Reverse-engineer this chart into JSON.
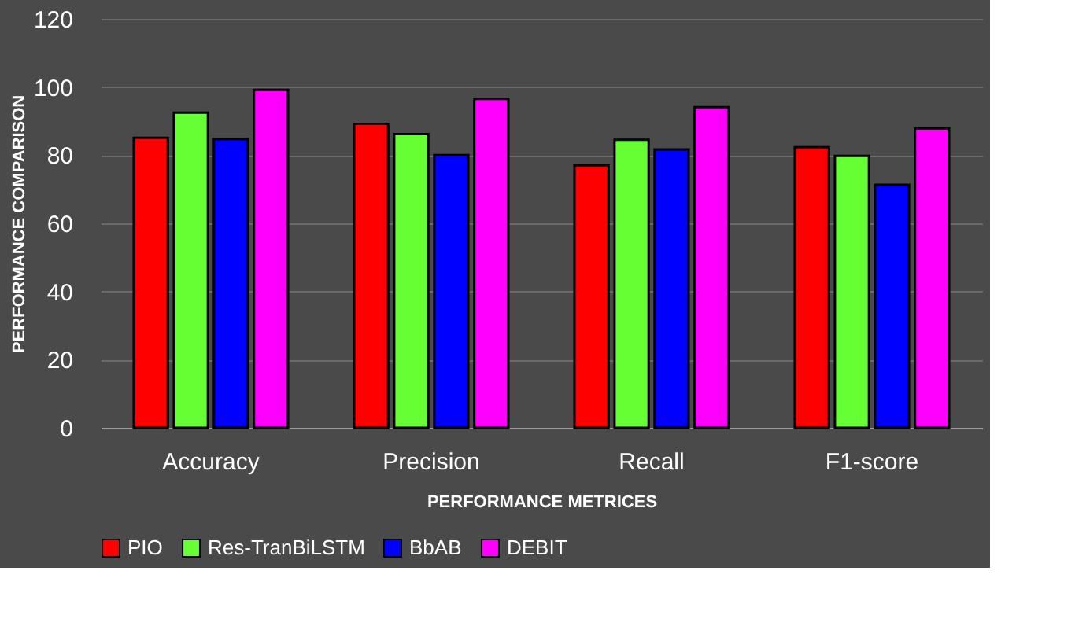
{
  "chart_data": {
    "type": "bar",
    "xlabel": "PERFORMANCE METRICES",
    "ylabel": "PERFORMANCE COMPARISON",
    "categories": [
      "Accuracy",
      "Precision",
      "Recall",
      "F1-score"
    ],
    "series": [
      {
        "name": "PIO",
        "color": "#ff0000",
        "values": [
          85.1,
          89.2,
          77.0,
          82.3
        ]
      },
      {
        "name": "Res-TranBiLSTM",
        "color": "#66ff33",
        "values": [
          92.5,
          86.2,
          84.5,
          79.8
        ]
      },
      {
        "name": "BbAB",
        "color": "#0000ff",
        "values": [
          84.7,
          80.0,
          81.7,
          71.3
        ]
      },
      {
        "name": "DEBIT",
        "color": "#ff00ff",
        "values": [
          99.2,
          96.5,
          94.1,
          87.8
        ]
      }
    ],
    "ylim": [
      0,
      120
    ],
    "yticks": [
      0,
      20,
      40,
      60,
      80,
      100,
      120
    ],
    "grid": "y",
    "legend": "bottom"
  }
}
